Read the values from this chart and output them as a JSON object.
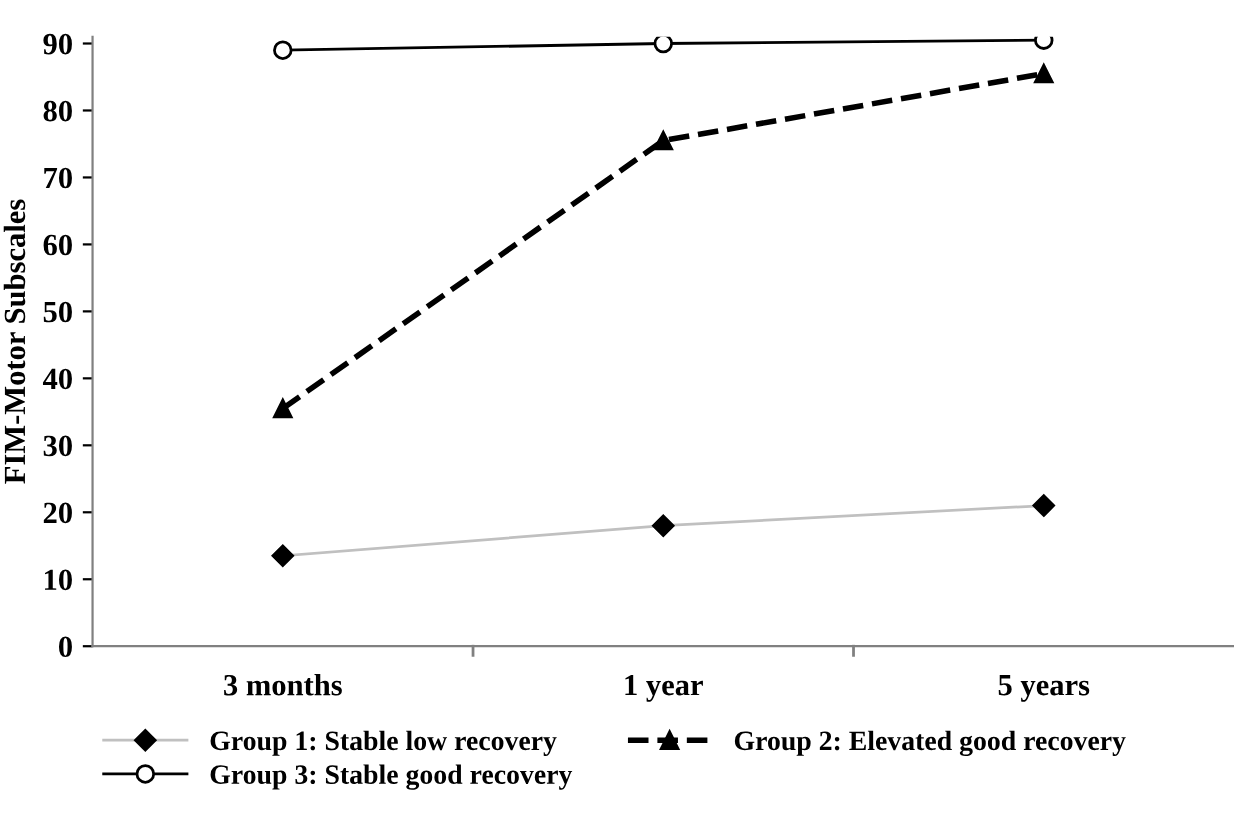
{
  "chart_data": {
    "type": "line",
    "ylabel": "FIM-Motor Subscales",
    "categories": [
      "3 months",
      "1 year",
      "5 years"
    ],
    "series": [
      {
        "name": "Group 1: Stable low recovery",
        "color": "#c0c0c0",
        "marker": "diamond",
        "line_style": "solid",
        "values": [
          13.5,
          18,
          21
        ]
      },
      {
        "name": "Group 2: Elevated good recovery",
        "color": "#000000",
        "marker": "triangle",
        "line_style": "dashed",
        "values": [
          35.5,
          75.5,
          85.5
        ]
      },
      {
        "name": "Group 3: Stable good recovery",
        "color": "#000000",
        "marker": "circle",
        "line_style": "solid",
        "values": [
          89,
          90,
          90.5
        ]
      }
    ],
    "ylim": [
      0,
      91
    ],
    "yticks": [
      0,
      10,
      20,
      30,
      40,
      50,
      60,
      70,
      80,
      90
    ],
    "grid": false,
    "legend": "bottom"
  }
}
